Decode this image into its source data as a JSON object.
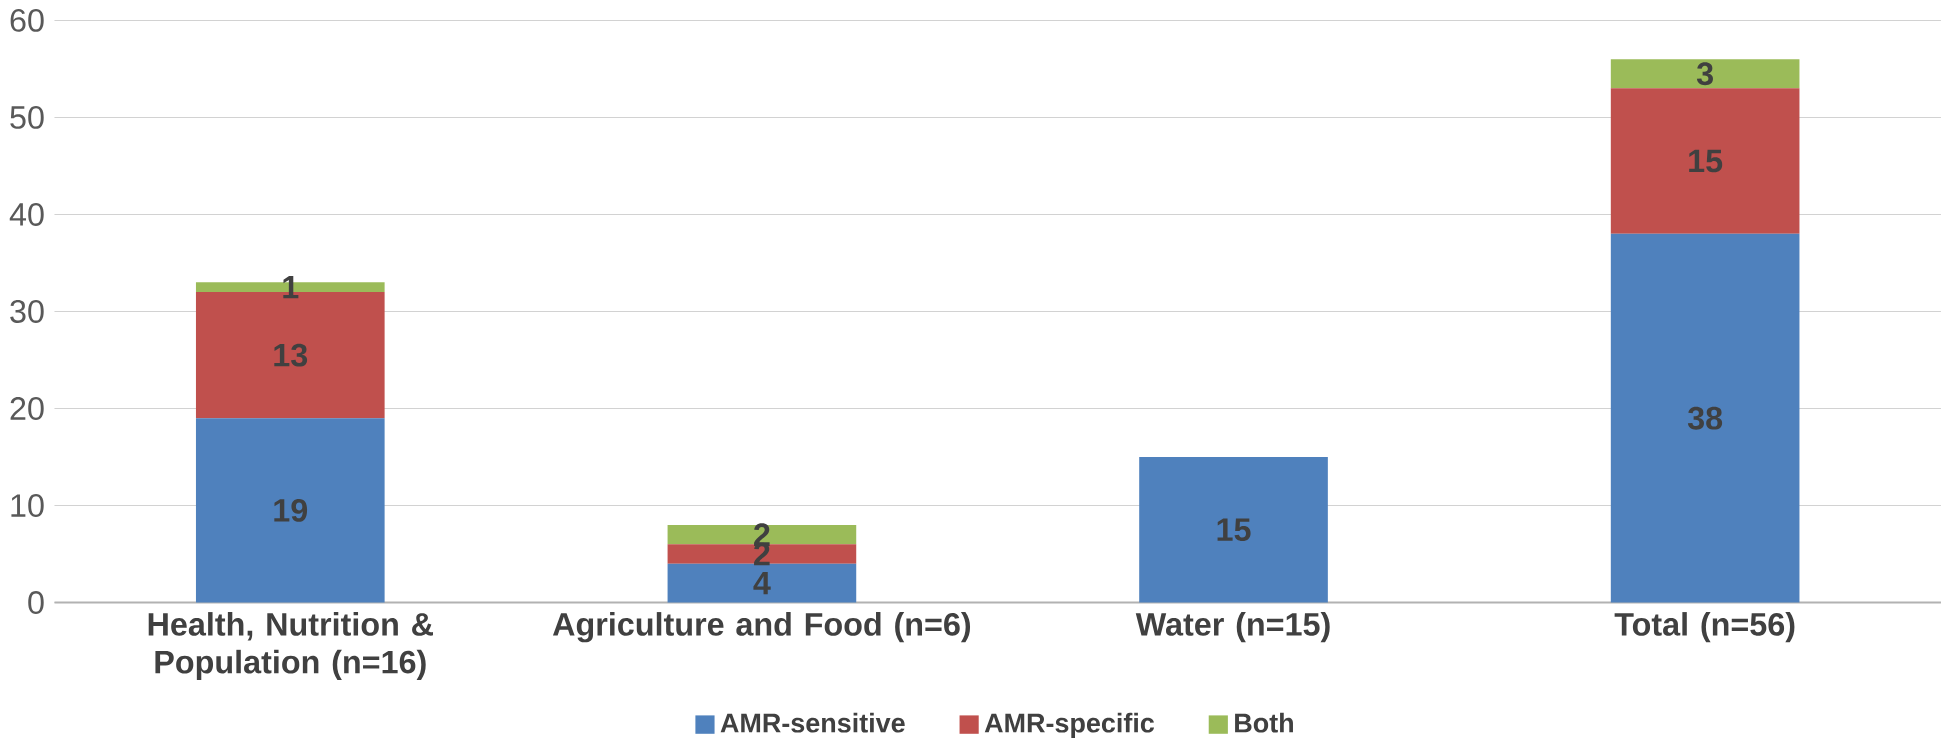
{
  "chart_data": {
    "type": "bar",
    "stacked": true,
    "categories": [
      "Health, Nutrition & Population (n=16)",
      "Agriculture and Food (n=6)",
      "Water (n=15)",
      "Total (n=56)"
    ],
    "series": [
      {
        "name": "AMR-sensitive",
        "color": "#4f81bd",
        "values": [
          19,
          4,
          15,
          38
        ],
        "value_labels": [
          "19",
          "4",
          "15",
          "38"
        ]
      },
      {
        "name": "AMR-specific",
        "color": "#c0504d",
        "values": [
          13,
          2,
          null,
          15
        ],
        "value_labels": [
          "13",
          "2",
          null,
          "15"
        ]
      },
      {
        "name": "Both",
        "color": "#9bbb59",
        "values": [
          1,
          2,
          null,
          3
        ],
        "value_labels": [
          "1",
          "2",
          null,
          "3"
        ]
      }
    ],
    "ylim": [
      0,
      60
    ],
    "yticks": [
      0,
      10,
      20,
      30,
      40,
      50,
      60
    ],
    "grid": "y",
    "legend": "bottom"
  }
}
